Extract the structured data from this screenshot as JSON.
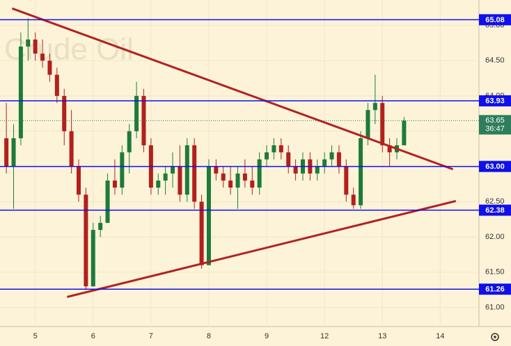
{
  "chart_data": {
    "type": "candlestick",
    "watermark": "Crude Oil",
    "x": [
      -0.5,
      -0.375,
      -0.25,
      -0.125,
      0,
      0.125,
      0.25,
      0.375,
      0.5,
      0.625,
      0.75,
      0.875,
      1,
      1.125,
      1.25,
      1.375,
      1.5,
      1.625,
      1.75,
      1.875,
      2,
      2.125,
      2.25,
      2.375,
      2.5,
      2.625,
      2.75,
      2.875,
      3,
      3.125,
      3.25,
      3.375,
      3.5,
      3.625,
      3.75,
      3.875,
      4,
      4.125,
      4.25,
      4.375,
      4.5,
      4.625,
      4.75,
      4.875,
      5,
      5.125,
      5.25,
      5.375,
      5.5,
      5.625,
      5.75,
      5.875,
      6,
      6.125,
      6.25,
      6.375
    ],
    "open": [
      63.4,
      63.0,
      63.4,
      64.7,
      64.8,
      64.6,
      64.5,
      64.3,
      64.0,
      63.5,
      63.0,
      62.6,
      61.3,
      62.1,
      62.2,
      62.8,
      62.7,
      63.2,
      63.5,
      64.0,
      63.3,
      62.7,
      62.8,
      62.9,
      63.0,
      62.6,
      63.3,
      62.5,
      61.6,
      63.0,
      62.9,
      62.8,
      62.7,
      62.9,
      62.8,
      62.7,
      63.1,
      63.2,
      63.3,
      63.2,
      63.0,
      62.9,
      63.1,
      62.9,
      63.0,
      63.1,
      63.2,
      63.0,
      62.6,
      62.45,
      63.4,
      63.8,
      63.9,
      63.3,
      63.2,
      63.3
    ],
    "high": [
      63.9,
      63.6,
      64.9,
      65.1,
      64.9,
      64.8,
      64.6,
      64.4,
      64.1,
      63.8,
      63.1,
      62.7,
      62.2,
      62.3,
      62.9,
      63.1,
      63.3,
      63.6,
      64.2,
      64.1,
      63.4,
      62.9,
      63.0,
      63.2,
      63.3,
      63.4,
      63.4,
      62.6,
      63.1,
      63.1,
      63.0,
      63.0,
      63.0,
      63.1,
      63.0,
      63.2,
      63.3,
      63.4,
      63.4,
      63.3,
      63.1,
      63.2,
      63.2,
      63.1,
      63.2,
      63.3,
      63.3,
      63.1,
      62.7,
      63.5,
      63.9,
      64.3,
      64.0,
      63.4,
      63.4,
      63.7
    ],
    "low": [
      62.9,
      62.4,
      63.3,
      64.5,
      64.5,
      64.4,
      64.2,
      63.9,
      63.3,
      62.9,
      62.5,
      61.25,
      61.3,
      62.0,
      62.2,
      62.6,
      62.6,
      62.9,
      63.4,
      63.2,
      62.6,
      62.6,
      62.6,
      62.7,
      62.5,
      62.5,
      62.4,
      61.55,
      61.6,
      62.8,
      62.7,
      62.6,
      62.4,
      62.7,
      62.6,
      62.6,
      63.0,
      63.1,
      63.1,
      62.9,
      62.8,
      62.8,
      62.8,
      62.8,
      62.9,
      63.0,
      62.9,
      62.5,
      62.4,
      62.4,
      63.3,
      63.6,
      63.2,
      63.0,
      63.1,
      63.3
    ],
    "close": [
      63.0,
      63.4,
      64.7,
      64.8,
      64.6,
      64.5,
      64.3,
      64.0,
      63.5,
      63.0,
      62.6,
      61.3,
      62.1,
      62.2,
      62.8,
      62.7,
      63.2,
      63.5,
      64.0,
      63.3,
      62.7,
      62.8,
      62.9,
      63.0,
      62.6,
      63.3,
      62.5,
      61.6,
      63.0,
      62.9,
      62.8,
      62.7,
      62.9,
      62.8,
      62.7,
      63.1,
      63.2,
      63.3,
      63.2,
      63.0,
      62.9,
      63.1,
      62.9,
      63.0,
      63.1,
      63.2,
      63.0,
      62.6,
      62.45,
      63.4,
      63.8,
      63.9,
      63.3,
      63.2,
      63.3,
      63.65
    ],
    "up_color": "#1e7b3a",
    "down_color": "#b3201c",
    "xlim": [
      -0.61,
      7.67
    ],
    "ylim": [
      60.73,
      65.36
    ],
    "xticks": [
      {
        "value": 0,
        "label": "5"
      },
      {
        "value": 1,
        "label": "6"
      },
      {
        "value": 2,
        "label": "7"
      },
      {
        "value": 3,
        "label": "8"
      },
      {
        "value": 4,
        "label": "9"
      },
      {
        "value": 5,
        "label": "12"
      },
      {
        "value": 6,
        "label": "13"
      },
      {
        "value": 7,
        "label": "14"
      }
    ],
    "yticks": [
      {
        "value": 61,
        "label": "61.00"
      },
      {
        "value": 61.5,
        "label": "61.50"
      },
      {
        "value": 62,
        "label": "62.00"
      },
      {
        "value": 62.5,
        "label": "62.50"
      },
      {
        "value": 63,
        "label": "63.00"
      },
      {
        "value": 63.5,
        "label": "63.50"
      },
      {
        "value": 64,
        "label": "64.00"
      },
      {
        "value": 64.5,
        "label": "64.50"
      },
      {
        "value": 65,
        "label": "65.00"
      }
    ],
    "grid": true,
    "levels": {
      "values": [
        65.08,
        63.93,
        63.0,
        62.38,
        61.26
      ],
      "value_labels": [
        "65.08",
        "63.93",
        "63.00",
        "62.38",
        "61.26"
      ],
      "color": "#1010e8"
    },
    "trendlines": [
      {
        "x": [
          -0.4,
          7.22
        ],
        "y": [
          65.24,
          62.96
        ]
      },
      {
        "x": [
          0.55,
          7.27
        ],
        "y": [
          61.15,
          62.51
        ]
      }
    ],
    "trendline_color": "#b22222",
    "last_price": {
      "value": 63.65,
      "label": "63.65",
      "countdown": "36:47",
      "color": "#2e7d5b"
    }
  }
}
